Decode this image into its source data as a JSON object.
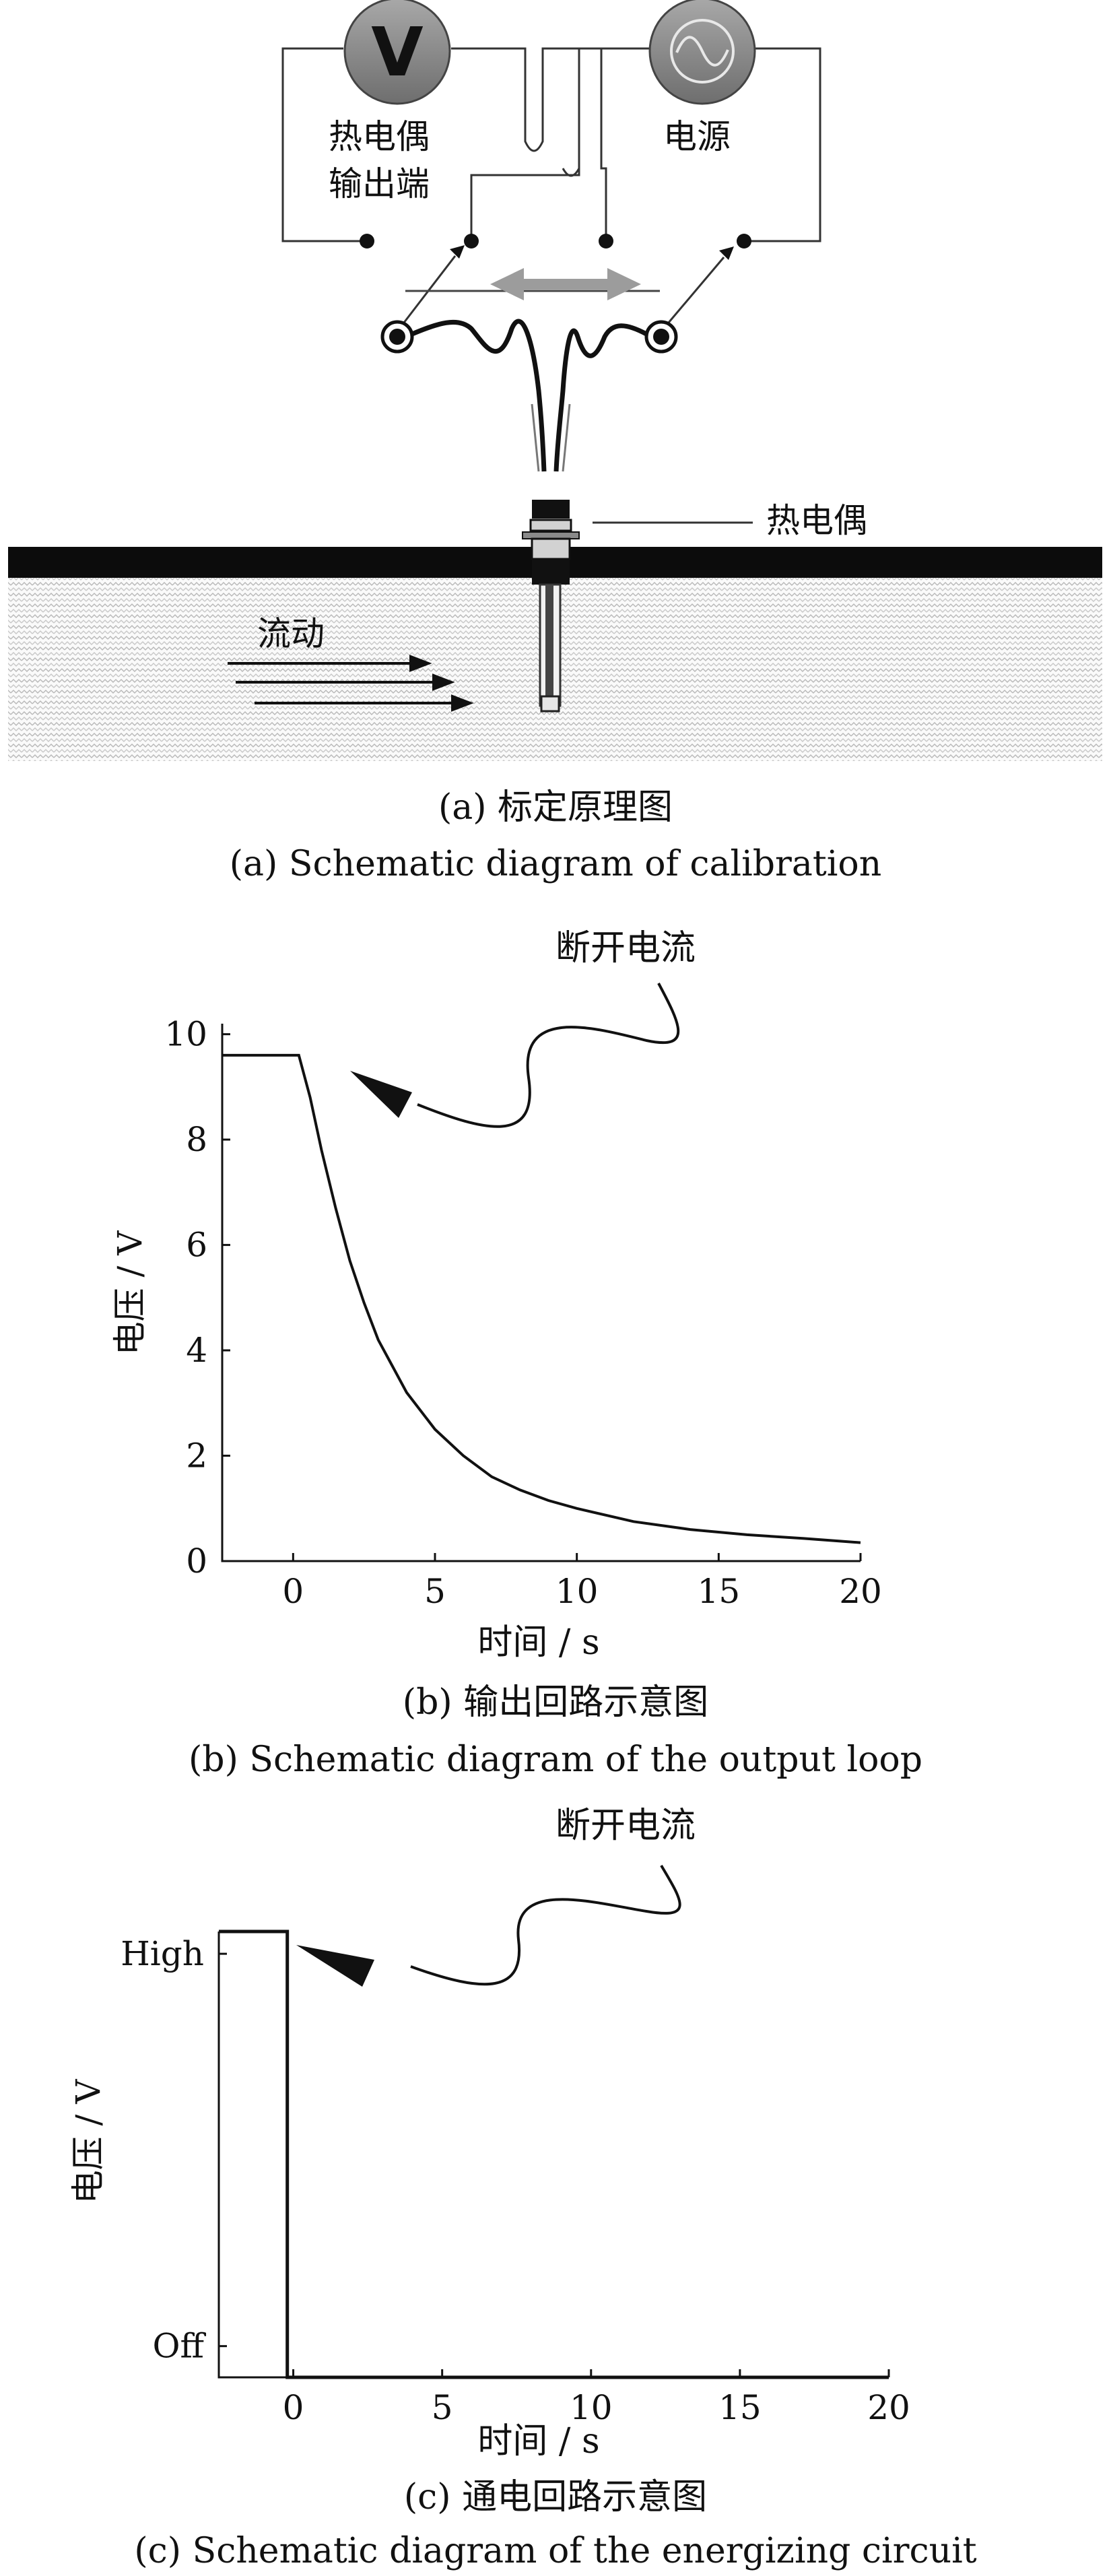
{
  "figure_a": {
    "voltmeter_symbol": "V",
    "thermo_output_line1": "热电偶",
    "thermo_output_line2": "输出端",
    "power_label": "电源",
    "thermocouple_label": "热电偶",
    "flow_label": "流动",
    "caption_cn": "(a) 标定原理图",
    "caption_en": "(a) Schematic diagram of calibration",
    "icons": [
      "voltmeter-icon",
      "ac-source-icon"
    ]
  },
  "figure_b": {
    "annotation": "断开电流",
    "caption_cn": "(b) 输出回路示意图",
    "caption_en": "(b) Schematic diagram of the output loop"
  },
  "figure_c": {
    "annotation": "断开电流",
    "caption_cn": "(c) 通电回路示意图",
    "caption_en": "(c) Schematic diagram of the energizing circuit"
  },
  "chart_data": [
    {
      "type": "line",
      "xlabel": "时间 / s",
      "ylabel": "电压 / V",
      "xlim": [
        -2.5,
        20
      ],
      "ylim": [
        0,
        10.2
      ],
      "xticks": [
        "0",
        "5",
        "10",
        "15",
        "20"
      ],
      "yticks": [
        "0",
        "2",
        "4",
        "6",
        "8",
        "10"
      ],
      "series": [
        {
          "x": [
            -2.5,
            0,
            0.2,
            0.6,
            1,
            1.5,
            2,
            2.5,
            3,
            3.5,
            4,
            5,
            6,
            7,
            8,
            9,
            10,
            12,
            14,
            16,
            18,
            20
          ],
          "values": [
            9.6,
            9.6,
            9.6,
            8.8,
            7.8,
            6.7,
            5.7,
            4.9,
            4.2,
            3.7,
            3.2,
            2.5,
            2.0,
            1.6,
            1.35,
            1.15,
            1.0,
            0.75,
            0.6,
            0.5,
            0.43,
            0.35
          ]
        }
      ]
    },
    {
      "type": "line",
      "xlabel": "时间 / s",
      "ylabel": "电压 / V",
      "xlim": [
        -2.5,
        20
      ],
      "ylim": [
        0,
        1
      ],
      "xticks": [
        "0",
        "5",
        "10",
        "15",
        "20"
      ],
      "yticks": [
        "Off",
        "High"
      ],
      "series": [
        {
          "x": [
            -2.5,
            -0.2,
            -0.2,
            20
          ],
          "values": [
            1,
            1,
            0,
            0
          ]
        }
      ]
    }
  ]
}
